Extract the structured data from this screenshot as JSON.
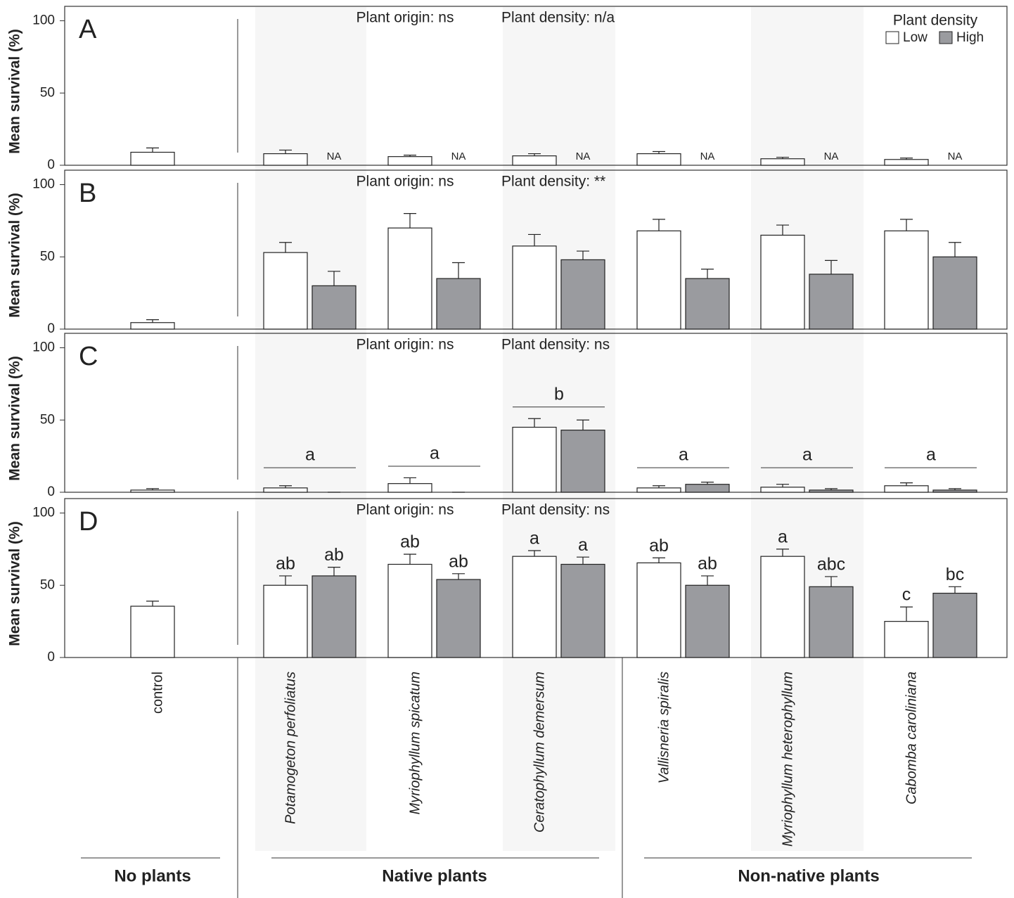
{
  "categories": [
    "control",
    "Potamogeton perfoliatus",
    "Myriophyllum spicatum",
    "Ceratophyllum demersum",
    "Vallisneria spiralis",
    "Myriophyllum heterophyllum",
    "Cabomba caroliniana"
  ],
  "groups": [
    "No plants",
    "Native plants",
    "Non-native plants"
  ],
  "chart_data": [
    {
      "type": "bar",
      "label": "A",
      "ylabel": "Mean survival (%)",
      "annotations": [
        "Plant origin: ns",
        "Plant density: n/a"
      ],
      "legend_title": "Plant density",
      "ylim": [
        0,
        110
      ],
      "yticks": [
        0,
        50,
        100
      ],
      "series": [
        {
          "name": "Low",
          "color": "#ffffff",
          "values": [
            9,
            8,
            6,
            6.5,
            8,
            4.5,
            4
          ],
          "errors": [
            3,
            2.5,
            1,
            1.5,
            1.5,
            1,
            1
          ]
        },
        {
          "name": "High",
          "color": "#9a9b9f",
          "values": [
            null,
            null,
            null,
            null,
            null,
            null,
            null
          ],
          "value_labels": [
            null,
            "NA",
            "NA",
            "NA",
            "NA",
            "NA",
            "NA"
          ]
        }
      ]
    },
    {
      "type": "bar",
      "label": "B",
      "ylabel": "Mean survival (%)",
      "annotations": [
        "Plant origin: ns",
        "Plant density: **"
      ],
      "ylim": [
        0,
        110
      ],
      "yticks": [
        0,
        50,
        100
      ],
      "series": [
        {
          "color": "#ffffff",
          "values": [
            4.5,
            53,
            70,
            57.5,
            68,
            65,
            68
          ],
          "errors": [
            2,
            7,
            10,
            8,
            8,
            7,
            8
          ]
        },
        {
          "color": "#9a9b9f",
          "values": [
            null,
            30,
            35,
            48,
            35,
            38,
            50
          ],
          "errors": [
            null,
            10,
            11,
            6,
            6.5,
            9.5,
            10
          ]
        }
      ]
    },
    {
      "type": "bar",
      "label": "C",
      "ylabel": "Mean survival (%)",
      "annotations": [
        "Plant origin: ns",
        "Plant density: ns"
      ],
      "ylim": [
        0,
        110
      ],
      "yticks": [
        0,
        50,
        100
      ],
      "group_letters": [
        null,
        "a",
        "a",
        "b",
        "a",
        "a",
        "a"
      ],
      "series": [
        {
          "color": "#ffffff",
          "values": [
            1.5,
            3,
            6,
            45,
            3,
            3.5,
            4.5
          ],
          "errors": [
            1,
            1.5,
            4,
            6,
            1.5,
            2,
            2
          ]
        },
        {
          "color": "#9a9b9f",
          "values": [
            null,
            0,
            0,
            43,
            5.5,
            1.5,
            1.5
          ],
          "errors": [
            null,
            0,
            0,
            7,
            1.5,
            1,
            1
          ]
        }
      ]
    },
    {
      "type": "bar",
      "label": "D",
      "ylabel": "Mean survival (%)",
      "annotations": [
        "Plant origin: ns",
        "Plant density: ns"
      ],
      "ylim": [
        0,
        110
      ],
      "yticks": [
        0,
        50,
        100
      ],
      "series": [
        {
          "color": "#ffffff",
          "values": [
            35.5,
            50,
            64.5,
            70,
            65.5,
            70,
            25
          ],
          "errors": [
            3.5,
            6.5,
            7,
            4,
            3.5,
            5,
            10
          ],
          "letters": [
            null,
            "ab",
            "ab",
            "a",
            "ab",
            "a",
            "c"
          ]
        },
        {
          "color": "#9a9b9f",
          "values": [
            null,
            56.5,
            54,
            64.5,
            50,
            49,
            44.5
          ],
          "errors": [
            null,
            6,
            4,
            5,
            6.5,
            7,
            4.5
          ],
          "letters": [
            null,
            "ab",
            "ab",
            "a",
            "ab",
            "abc",
            "bc"
          ]
        }
      ]
    }
  ]
}
